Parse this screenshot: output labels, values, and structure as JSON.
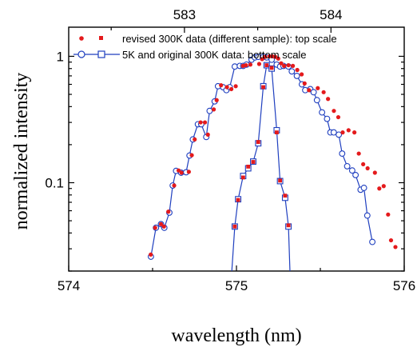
{
  "chart_data": {
    "type": "scatter",
    "title": "",
    "xlabel": "wavelength (nm)",
    "ylabel": "normalized intensity",
    "bottom_axis": {
      "range": [
        574,
        576
      ],
      "ticks": [
        574,
        575,
        576
      ],
      "tick_labels": [
        "574",
        "575",
        "576"
      ]
    },
    "top_axis": {
      "range": [
        582.21,
        584.5
      ],
      "ticks": [
        583,
        584
      ],
      "tick_labels": [
        "583",
        "584"
      ]
    },
    "y_axis": {
      "scale": "log",
      "range": [
        0.02,
        1.7
      ],
      "ticks": [
        0.1,
        1
      ],
      "tick_labels": [
        "0.1",
        "1"
      ]
    },
    "grid": false,
    "legend_position": "top-left",
    "colors": {
      "red_series": "#e41a1c",
      "blue_series": "#1f3fbf"
    },
    "series": [
      {
        "name": "revised 300K data (different sample): top scale",
        "axis": "top",
        "marker": "red-dot",
        "x": [
          582.77,
          582.8,
          582.84,
          582.86,
          582.89,
          582.93,
          582.96,
          582.98,
          583.03,
          583.05,
          583.07,
          583.11,
          583.14,
          583.16,
          583.2,
          583.22,
          583.25,
          583.29,
          583.32,
          583.35,
          583.4,
          583.42,
          583.45,
          583.51,
          583.53,
          583.55,
          583.58,
          583.6,
          583.62,
          583.64,
          583.66,
          583.68,
          583.71,
          583.74,
          583.77,
          583.8,
          583.82,
          583.85,
          583.91,
          583.95,
          583.98,
          584.02,
          584.05,
          584.08,
          584.12,
          584.16,
          584.19,
          584.22,
          584.25,
          584.3,
          584.33,
          584.36,
          584.39,
          584.41,
          584.44
        ],
        "y": [
          0.027,
          0.044,
          0.047,
          0.045,
          0.059,
          0.095,
          0.125,
          0.12,
          0.122,
          0.165,
          0.22,
          0.3,
          0.3,
          0.24,
          0.38,
          0.45,
          0.59,
          0.57,
          0.55,
          0.58,
          0.84,
          0.85,
          0.86,
          0.87,
          0.95,
          0.99,
          1.0,
          1.0,
          0.99,
          0.96,
          0.88,
          0.84,
          0.85,
          0.84,
          0.78,
          0.72,
          0.61,
          0.54,
          0.56,
          0.52,
          0.46,
          0.37,
          0.33,
          0.25,
          0.26,
          0.25,
          0.17,
          0.14,
          0.13,
          0.12,
          0.09,
          0.094,
          0.056,
          0.035,
          0.031
        ]
      },
      {
        "name": "5K and original 300K data: bottom scale",
        "axis": "bottom",
        "marker": "blue-open-circle",
        "x": [
          574.49,
          574.52,
          574.55,
          574.57,
          574.6,
          574.62,
          574.64,
          574.67,
          574.7,
          574.72,
          574.74,
          574.77,
          574.79,
          574.82,
          574.84,
          574.87,
          574.89,
          574.92,
          574.94,
          574.96,
          574.99,
          575.02,
          575.04,
          575.06,
          575.09,
          575.11,
          575.13,
          575.16,
          575.18,
          575.21,
          575.24,
          575.26,
          575.28,
          575.31,
          575.33,
          575.36,
          575.39,
          575.41,
          575.44,
          575.46,
          575.48,
          575.51,
          575.54,
          575.56,
          575.58,
          575.61,
          575.63,
          575.66,
          575.69,
          575.71,
          575.74,
          575.76,
          575.78,
          575.81
        ],
        "y": [
          0.026,
          0.044,
          0.047,
          0.044,
          0.058,
          0.095,
          0.124,
          0.12,
          0.121,
          0.164,
          0.22,
          0.29,
          0.29,
          0.23,
          0.37,
          0.44,
          0.58,
          0.57,
          0.54,
          0.57,
          0.83,
          0.84,
          0.84,
          0.86,
          0.94,
          0.98,
          0.99,
          0.99,
          0.98,
          0.94,
          0.86,
          0.83,
          0.84,
          0.83,
          0.76,
          0.7,
          0.6,
          0.54,
          0.55,
          0.52,
          0.45,
          0.36,
          0.32,
          0.25,
          0.25,
          0.24,
          0.17,
          0.135,
          0.125,
          0.115,
          0.088,
          0.091,
          0.055,
          0.034
        ]
      },
      {
        "name": "",
        "axis": "bottom",
        "marker": "red-square",
        "x": [
          574.99,
          575.01,
          575.04,
          575.07,
          575.1,
          575.13,
          575.16,
          575.18,
          575.21,
          575.24,
          575.26,
          575.29,
          575.31
        ],
        "y": [
          0.045,
          0.073,
          0.11,
          0.134,
          0.146,
          0.21,
          0.57,
          0.85,
          0.81,
          0.25,
          0.104,
          0.079,
          0.046
        ]
      },
      {
        "name": "",
        "axis": "bottom",
        "marker": "blue-open-square",
        "x": [
          574.97,
          574.99,
          575.01,
          575.04,
          575.07,
          575.1,
          575.13,
          575.16,
          575.18,
          575.21,
          575.24,
          575.26,
          575.29,
          575.31,
          575.32
        ],
        "y": [
          0.018,
          0.045,
          0.074,
          0.113,
          0.13,
          0.147,
          0.205,
          0.58,
          0.85,
          0.8,
          0.26,
          0.103,
          0.076,
          0.045,
          0.018
        ]
      }
    ]
  }
}
